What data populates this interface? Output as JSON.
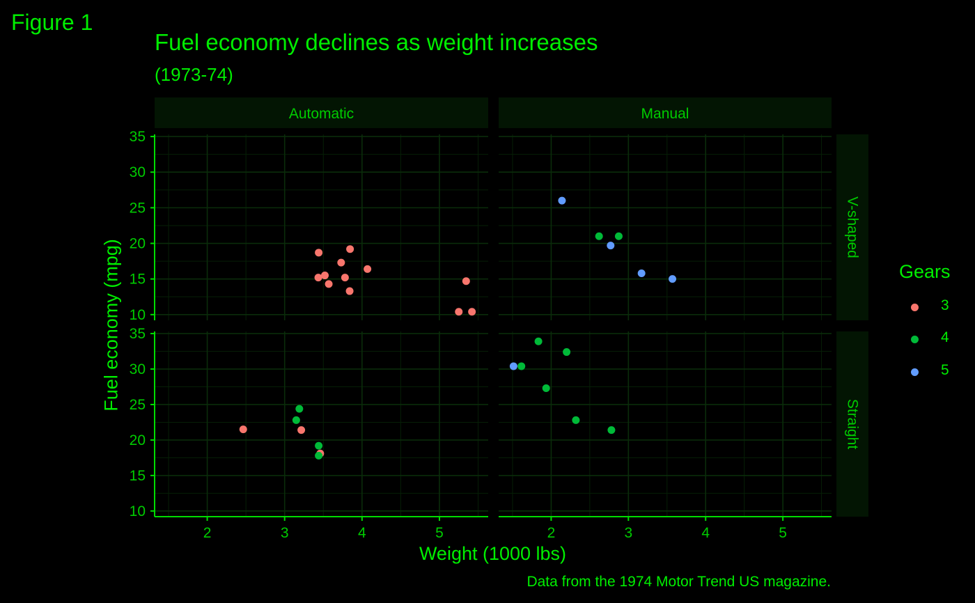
{
  "figure": {
    "tag": "Figure 1",
    "title": "Fuel economy declines as weight increases",
    "subtitle": "(1973-74)",
    "caption": "Data from the 1974 Motor Trend US magazine."
  },
  "chart_data": {
    "type": "scatter",
    "xlabel": "Weight (1000 lbs)",
    "ylabel": "Fuel economy (mpg)",
    "xlim": [
      1.32,
      5.63
    ],
    "ylim": [
      9.2,
      35.3
    ],
    "xticks": [
      2,
      3,
      4,
      5
    ],
    "yticks": [
      10,
      15,
      20,
      25,
      30,
      35
    ],
    "grid": true,
    "legend": {
      "title": "Gears",
      "placement": "right",
      "entries": [
        {
          "label": "3",
          "color": "#f8766d"
        },
        {
          "label": "4",
          "color": "#00ba38"
        },
        {
          "label": "5",
          "color": "#619cff"
        }
      ]
    },
    "facet_cols": [
      "Automatic",
      "Manual"
    ],
    "facet_rows": [
      "V-shaped",
      "Straight"
    ],
    "panels": [
      {
        "col": "Automatic",
        "row": "V-shaped",
        "points": [
          {
            "x": 3.44,
            "y": 18.7,
            "gear": "3"
          },
          {
            "x": 3.57,
            "y": 14.3,
            "gear": "3"
          },
          {
            "x": 4.07,
            "y": 16.4,
            "gear": "3"
          },
          {
            "x": 3.73,
            "y": 17.3,
            "gear": "3"
          },
          {
            "x": 3.78,
            "y": 15.2,
            "gear": "3"
          },
          {
            "x": 5.25,
            "y": 10.4,
            "gear": "3"
          },
          {
            "x": 5.42,
            "y": 10.4,
            "gear": "3"
          },
          {
            "x": 5.345,
            "y": 14.7,
            "gear": "3"
          },
          {
            "x": 3.52,
            "y": 15.5,
            "gear": "3"
          },
          {
            "x": 3.435,
            "y": 15.2,
            "gear": "3"
          },
          {
            "x": 3.84,
            "y": 13.3,
            "gear": "3"
          },
          {
            "x": 3.845,
            "y": 19.2,
            "gear": "3"
          }
        ]
      },
      {
        "col": "Manual",
        "row": "V-shaped",
        "points": [
          {
            "x": 2.62,
            "y": 21.0,
            "gear": "4"
          },
          {
            "x": 2.875,
            "y": 21.0,
            "gear": "4"
          },
          {
            "x": 2.14,
            "y": 26.0,
            "gear": "5"
          },
          {
            "x": 3.17,
            "y": 15.8,
            "gear": "5"
          },
          {
            "x": 2.77,
            "y": 19.7,
            "gear": "5"
          },
          {
            "x": 3.57,
            "y": 15.0,
            "gear": "5"
          }
        ]
      },
      {
        "col": "Automatic",
        "row": "Straight",
        "points": [
          {
            "x": 3.215,
            "y": 21.4,
            "gear": "3"
          },
          {
            "x": 3.46,
            "y": 18.1,
            "gear": "3"
          },
          {
            "x": 2.465,
            "y": 21.5,
            "gear": "3"
          },
          {
            "x": 3.19,
            "y": 24.4,
            "gear": "4"
          },
          {
            "x": 3.15,
            "y": 22.8,
            "gear": "4"
          },
          {
            "x": 3.44,
            "y": 19.2,
            "gear": "4"
          },
          {
            "x": 3.44,
            "y": 17.8,
            "gear": "4"
          }
        ]
      },
      {
        "col": "Manual",
        "row": "Straight",
        "points": [
          {
            "x": 2.32,
            "y": 22.8,
            "gear": "4"
          },
          {
            "x": 2.2,
            "y": 32.4,
            "gear": "4"
          },
          {
            "x": 1.615,
            "y": 30.4,
            "gear": "4"
          },
          {
            "x": 1.835,
            "y": 33.9,
            "gear": "4"
          },
          {
            "x": 1.935,
            "y": 27.3,
            "gear": "4"
          },
          {
            "x": 2.78,
            "y": 21.4,
            "gear": "4"
          },
          {
            "x": 1.513,
            "y": 30.4,
            "gear": "5"
          }
        ]
      }
    ]
  }
}
